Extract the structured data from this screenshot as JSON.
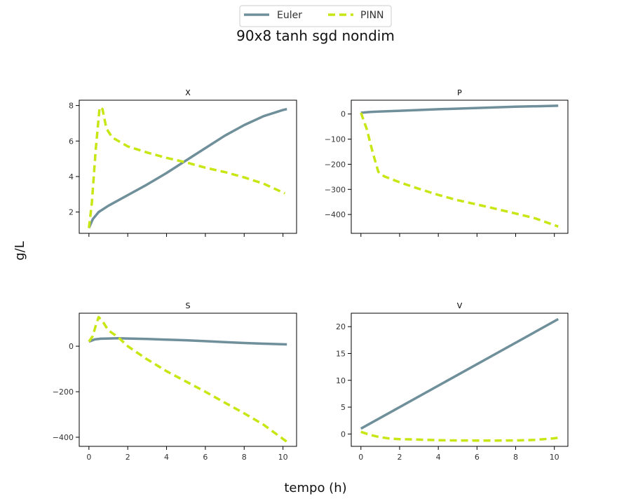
{
  "figure": {
    "title": "90x8 tanh sgd nondim",
    "xlabel": "tempo (h)",
    "ylabel": "g/L",
    "legend": {
      "placement": "top-center",
      "entries": [
        {
          "name": "Euler",
          "style": "solid",
          "color": "#6f8f9b"
        },
        {
          "name": "PINN",
          "style": "dashed",
          "color": "#c8e614"
        }
      ]
    }
  },
  "chart_data": [
    {
      "type": "line",
      "title": "X",
      "xlim": [
        -0.5,
        10.7
      ],
      "ylim": [
        0.8,
        8.3
      ],
      "xticks": [
        0,
        2,
        4,
        6,
        8,
        10
      ],
      "yticks": [
        2,
        4,
        6,
        8
      ],
      "show_xtick_labels": false,
      "series": [
        {
          "name": "Euler",
          "x": [
            0,
            0.2,
            0.5,
            1,
            2,
            3,
            4,
            5,
            6,
            7,
            8,
            9,
            10,
            10.2
          ],
          "y": [
            1.1,
            1.6,
            2.0,
            2.35,
            2.95,
            3.55,
            4.2,
            4.9,
            5.6,
            6.3,
            6.9,
            7.4,
            7.75,
            7.8
          ]
        },
        {
          "name": "PINN",
          "x": [
            0,
            0.15,
            0.35,
            0.55,
            0.7,
            0.9,
            1.2,
            2,
            3,
            4,
            5,
            6,
            7,
            8,
            9,
            10.1
          ],
          "y": [
            1.1,
            2.5,
            5.5,
            7.9,
            7.8,
            6.7,
            6.2,
            5.7,
            5.35,
            5.05,
            4.8,
            4.5,
            4.25,
            3.95,
            3.6,
            3.05
          ]
        }
      ]
    },
    {
      "type": "line",
      "title": "P",
      "xlim": [
        -0.5,
        10.7
      ],
      "ylim": [
        -475,
        55
      ],
      "xticks": [
        0,
        2,
        4,
        6,
        8,
        10
      ],
      "yticks": [
        0,
        -100,
        -200,
        -300,
        -400
      ],
      "ytick_labels": [
        "0",
        "−100",
        "−200",
        "−300",
        "−400"
      ],
      "show_xtick_labels": false,
      "series": [
        {
          "name": "Euler",
          "x": [
            0,
            0.5,
            1,
            2,
            4,
            6,
            8,
            10.2
          ],
          "y": [
            5,
            8,
            10,
            13,
            19,
            24,
            29,
            33
          ]
        },
        {
          "name": "PINN",
          "x": [
            0,
            0.3,
            0.6,
            0.9,
            1.2,
            2,
            3,
            4,
            5,
            6,
            7,
            8,
            9,
            10.2
          ],
          "y": [
            5,
            -60,
            -150,
            -230,
            -248,
            -272,
            -298,
            -322,
            -343,
            -360,
            -378,
            -396,
            -415,
            -448
          ]
        }
      ]
    },
    {
      "type": "line",
      "title": "S",
      "xlim": [
        -0.5,
        10.7
      ],
      "ylim": [
        -440,
        145
      ],
      "xticks": [
        0,
        2,
        4,
        6,
        8,
        10
      ],
      "yticks": [
        0,
        -200,
        -400
      ],
      "ytick_labels": [
        "0",
        "−200",
        "−400"
      ],
      "show_xtick_labels": true,
      "series": [
        {
          "name": "Euler",
          "x": [
            0,
            0.3,
            0.6,
            1,
            1.5,
            2,
            3,
            4,
            5,
            6,
            7,
            8,
            9,
            10.2
          ],
          "y": [
            20,
            30,
            33,
            34,
            35,
            34,
            32,
            29,
            26,
            22,
            18,
            14,
            11,
            8
          ]
        },
        {
          "name": "PINN",
          "x": [
            0,
            0.2,
            0.35,
            0.5,
            0.7,
            1,
            1.5,
            2,
            3,
            4,
            5,
            6,
            7,
            8,
            9,
            10.2
          ],
          "y": [
            20,
            45,
            90,
            128,
            110,
            70,
            40,
            0,
            -58,
            -110,
            -155,
            -200,
            -248,
            -295,
            -345,
            -420
          ]
        }
      ]
    },
    {
      "type": "line",
      "title": "V",
      "xlim": [
        -0.5,
        10.7
      ],
      "ylim": [
        -2.3,
        22.5
      ],
      "xticks": [
        0,
        2,
        4,
        6,
        8,
        10
      ],
      "yticks": [
        0,
        5,
        10,
        15,
        20
      ],
      "show_xtick_labels": true,
      "series": [
        {
          "name": "Euler",
          "x": [
            0,
            10.2
          ],
          "y": [
            1.0,
            21.4
          ]
        },
        {
          "name": "PINN",
          "x": [
            0,
            0.5,
            1,
            1.5,
            2,
            3,
            4,
            5,
            6,
            7,
            8,
            9,
            10,
            10.2
          ],
          "y": [
            0.4,
            -0.2,
            -0.6,
            -0.85,
            -0.95,
            -1.05,
            -1.15,
            -1.2,
            -1.22,
            -1.22,
            -1.2,
            -1.1,
            -0.8,
            -0.7
          ]
        }
      ]
    }
  ]
}
